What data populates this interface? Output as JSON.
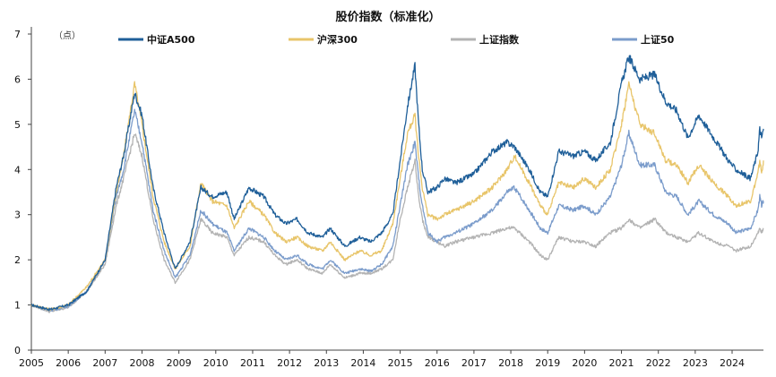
{
  "chart_data": {
    "type": "line",
    "title": "股价指数（标准化）",
    "unit_label": "（点）",
    "xlabel": "",
    "ylabel": "",
    "xlim": [
      2005.0,
      2024.85
    ],
    "ylim": [
      0,
      7
    ],
    "y_ticks": [
      0,
      1,
      2,
      3,
      4,
      5,
      6,
      7
    ],
    "x_ticks": [
      "2005",
      "2006",
      "2007",
      "2008",
      "2009",
      "2010",
      "2011",
      "2012",
      "2013",
      "2014",
      "2015",
      "2016",
      "2017",
      "2018",
      "2019",
      "2020",
      "2021",
      "2022",
      "2023",
      "2024"
    ],
    "legend_position": "top",
    "series": [
      {
        "name": "中证A500",
        "color": "#1f5f99",
        "x": [
          2005.0,
          2005.5,
          2006.0,
          2006.5,
          2007.0,
          2007.3,
          2007.5,
          2007.8,
          2008.0,
          2008.3,
          2008.6,
          2008.9,
          2009.3,
          2009.6,
          2009.9,
          2010.3,
          2010.5,
          2010.9,
          2011.3,
          2011.6,
          2011.9,
          2012.2,
          2012.5,
          2012.9,
          2013.1,
          2013.5,
          2013.9,
          2014.2,
          2014.5,
          2014.8,
          2015.0,
          2015.2,
          2015.4,
          2015.5,
          2015.6,
          2015.75,
          2016.0,
          2016.2,
          2016.5,
          2017.0,
          2017.5,
          2017.9,
          2018.1,
          2018.5,
          2018.8,
          2019.0,
          2019.3,
          2019.7,
          2020.0,
          2020.3,
          2020.7,
          2021.0,
          2021.2,
          2021.5,
          2021.9,
          2022.2,
          2022.5,
          2022.8,
          2023.1,
          2023.5,
          2023.9,
          2024.1,
          2024.5,
          2024.7,
          2024.75,
          2024.8,
          2024.85
        ],
        "values": [
          1.0,
          0.9,
          1.0,
          1.3,
          2.0,
          3.6,
          4.3,
          5.7,
          5.2,
          3.6,
          2.6,
          1.8,
          2.4,
          3.6,
          3.4,
          3.5,
          2.9,
          3.6,
          3.4,
          3.0,
          2.8,
          2.9,
          2.6,
          2.5,
          2.7,
          2.3,
          2.5,
          2.4,
          2.6,
          3.0,
          4.2,
          5.4,
          6.3,
          5.0,
          4.0,
          3.5,
          3.6,
          3.8,
          3.7,
          3.9,
          4.4,
          4.6,
          4.5,
          4.0,
          3.5,
          3.4,
          4.4,
          4.3,
          4.4,
          4.2,
          4.6,
          5.9,
          6.5,
          6.0,
          6.1,
          5.5,
          5.3,
          4.7,
          5.2,
          4.7,
          4.2,
          4.0,
          3.8,
          4.4,
          4.9,
          4.7,
          4.9
        ]
      },
      {
        "name": "沪深300",
        "color": "#e8c56a",
        "x": [
          2005.0,
          2005.5,
          2006.0,
          2006.5,
          2007.0,
          2007.3,
          2007.5,
          2007.8,
          2008.0,
          2008.3,
          2008.6,
          2008.9,
          2009.3,
          2009.6,
          2009.9,
          2010.3,
          2010.5,
          2010.9,
          2011.3,
          2011.6,
          2011.9,
          2012.2,
          2012.5,
          2012.9,
          2013.1,
          2013.5,
          2013.9,
          2014.2,
          2014.5,
          2014.8,
          2015.0,
          2015.2,
          2015.4,
          2015.5,
          2015.6,
          2015.75,
          2016.0,
          2016.2,
          2016.5,
          2017.0,
          2017.5,
          2017.9,
          2018.1,
          2018.5,
          2018.8,
          2019.0,
          2019.3,
          2019.7,
          2020.0,
          2020.3,
          2020.7,
          2021.0,
          2021.2,
          2021.5,
          2021.9,
          2022.2,
          2022.5,
          2022.8,
          2023.1,
          2023.5,
          2023.9,
          2024.1,
          2024.5,
          2024.7,
          2024.75,
          2024.8,
          2024.85
        ],
        "values": [
          1.0,
          0.9,
          1.0,
          1.4,
          2.0,
          3.5,
          4.3,
          5.9,
          5.0,
          3.4,
          2.4,
          1.8,
          2.3,
          3.7,
          3.3,
          3.2,
          2.7,
          3.3,
          3.0,
          2.6,
          2.4,
          2.5,
          2.3,
          2.2,
          2.4,
          2.0,
          2.2,
          2.1,
          2.2,
          2.8,
          3.8,
          4.8,
          5.2,
          4.3,
          3.6,
          3.0,
          2.9,
          3.0,
          3.1,
          3.3,
          3.6,
          4.0,
          4.3,
          3.7,
          3.2,
          3.0,
          3.7,
          3.6,
          3.8,
          3.6,
          4.0,
          5.0,
          5.9,
          5.0,
          4.8,
          4.2,
          4.1,
          3.7,
          4.1,
          3.7,
          3.4,
          3.2,
          3.3,
          3.9,
          4.2,
          3.9,
          4.2
        ]
      },
      {
        "name": "上证指数",
        "color": "#b3b3b3",
        "x": [
          2005.0,
          2005.5,
          2006.0,
          2006.5,
          2007.0,
          2007.3,
          2007.5,
          2007.8,
          2008.0,
          2008.3,
          2008.6,
          2008.9,
          2009.3,
          2009.6,
          2009.9,
          2010.3,
          2010.5,
          2010.9,
          2011.3,
          2011.6,
          2011.9,
          2012.2,
          2012.5,
          2012.9,
          2013.1,
          2013.5,
          2013.9,
          2014.2,
          2014.5,
          2014.8,
          2015.0,
          2015.2,
          2015.4,
          2015.5,
          2015.6,
          2015.75,
          2016.0,
          2016.2,
          2016.5,
          2017.0,
          2017.5,
          2017.9,
          2018.1,
          2018.5,
          2018.8,
          2019.0,
          2019.3,
          2019.7,
          2020.0,
          2020.3,
          2020.7,
          2021.0,
          2021.2,
          2021.5,
          2021.9,
          2022.2,
          2022.5,
          2022.8,
          2023.1,
          2023.5,
          2023.9,
          2024.1,
          2024.5,
          2024.7,
          2024.75,
          2024.8,
          2024.85
        ],
        "values": [
          1.0,
          0.85,
          0.95,
          1.3,
          1.9,
          3.2,
          3.8,
          4.8,
          4.3,
          2.9,
          2.0,
          1.5,
          2.0,
          2.9,
          2.6,
          2.5,
          2.1,
          2.5,
          2.4,
          2.1,
          1.9,
          2.0,
          1.8,
          1.7,
          1.9,
          1.6,
          1.7,
          1.7,
          1.8,
          2.0,
          2.9,
          3.6,
          4.2,
          3.4,
          2.9,
          2.5,
          2.4,
          2.3,
          2.4,
          2.5,
          2.6,
          2.7,
          2.7,
          2.4,
          2.1,
          2.0,
          2.5,
          2.4,
          2.4,
          2.3,
          2.6,
          2.7,
          2.9,
          2.7,
          2.9,
          2.6,
          2.5,
          2.4,
          2.6,
          2.4,
          2.3,
          2.2,
          2.3,
          2.6,
          2.7,
          2.6,
          2.7
        ]
      },
      {
        "name": "上证50",
        "color": "#7b9ccb",
        "x": [
          2005.0,
          2005.5,
          2006.0,
          2006.5,
          2007.0,
          2007.3,
          2007.5,
          2007.8,
          2008.0,
          2008.3,
          2008.6,
          2008.9,
          2009.3,
          2009.6,
          2009.9,
          2010.3,
          2010.5,
          2010.9,
          2011.3,
          2011.6,
          2011.9,
          2012.2,
          2012.5,
          2012.9,
          2013.1,
          2013.5,
          2013.9,
          2014.2,
          2014.5,
          2014.8,
          2015.0,
          2015.2,
          2015.4,
          2015.5,
          2015.6,
          2015.75,
          2016.0,
          2016.2,
          2016.5,
          2017.0,
          2017.5,
          2017.9,
          2018.1,
          2018.5,
          2018.8,
          2019.0,
          2019.3,
          2019.7,
          2020.0,
          2020.3,
          2020.7,
          2021.0,
          2021.2,
          2021.5,
          2021.9,
          2022.2,
          2022.5,
          2022.8,
          2023.1,
          2023.5,
          2023.9,
          2024.1,
          2024.5,
          2024.7,
          2024.75,
          2024.8,
          2024.85
        ],
        "values": [
          1.0,
          0.88,
          0.97,
          1.3,
          2.0,
          3.4,
          4.0,
          5.3,
          4.6,
          3.1,
          2.2,
          1.6,
          2.1,
          3.1,
          2.8,
          2.6,
          2.2,
          2.7,
          2.5,
          2.2,
          2.0,
          2.1,
          1.9,
          1.8,
          2.0,
          1.7,
          1.8,
          1.75,
          1.9,
          2.3,
          3.2,
          4.1,
          4.6,
          3.8,
          3.2,
          2.6,
          2.4,
          2.5,
          2.6,
          2.8,
          3.1,
          3.5,
          3.6,
          3.1,
          2.7,
          2.6,
          3.2,
          3.1,
          3.2,
          3.0,
          3.4,
          4.1,
          4.8,
          4.1,
          4.1,
          3.5,
          3.4,
          3.0,
          3.3,
          3.0,
          2.8,
          2.6,
          2.7,
          3.1,
          3.4,
          3.2,
          3.3
        ]
      }
    ]
  }
}
